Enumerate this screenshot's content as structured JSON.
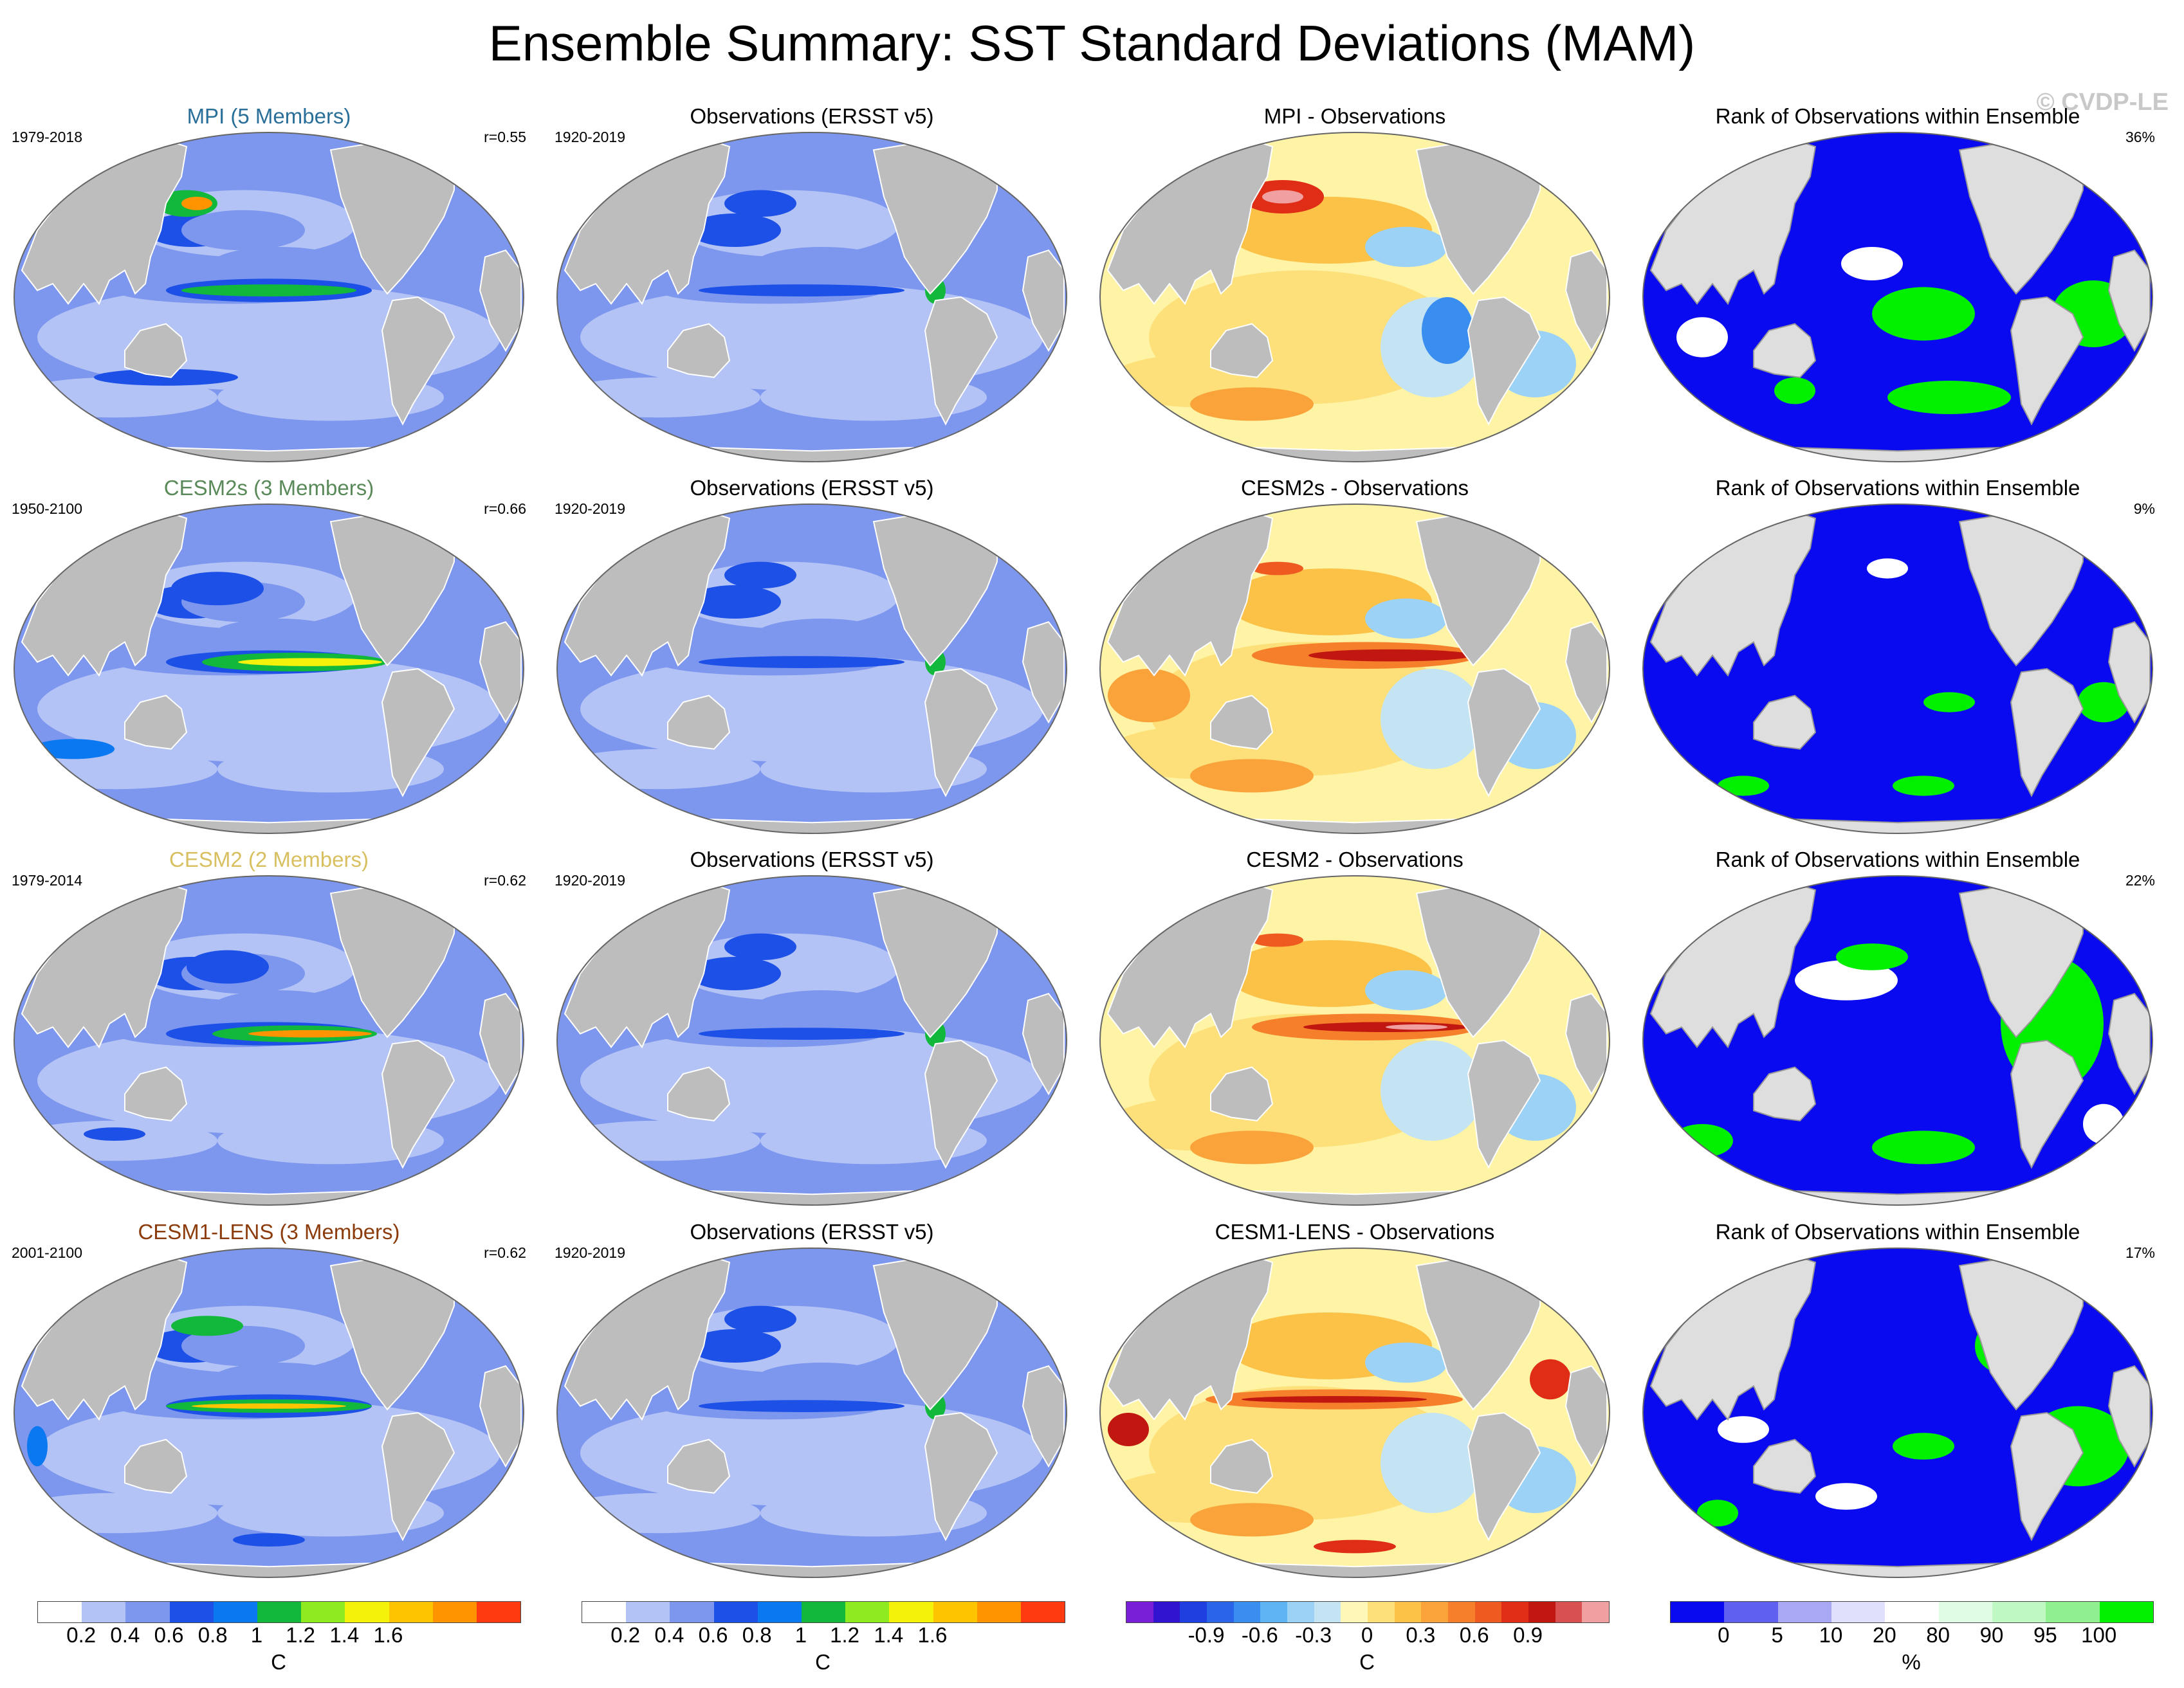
{
  "title": "Ensemble Summary: SST Standard Deviations (MAM)",
  "watermark": "© CVDP-LE",
  "colors": {
    "ocean_background": "#d0d8f8",
    "land": "#bdbdbd",
    "rank_land": "#dedede",
    "mpi": "#2a6f9a",
    "cesm2s": "#5a8a5a",
    "cesm2": "#d8c060",
    "cesm1_lens": "#8c3c0c"
  },
  "rows": [
    {
      "model": {
        "title": "MPI (5 Members)",
        "years": "1979-2018",
        "pattern_corr": "r=0.55",
        "title_color": "#2a6f9a"
      },
      "obs": {
        "title": "Observations (ERSST v5)",
        "years": "1920-2019"
      },
      "diff": {
        "title": "MPI - Observations"
      },
      "rank": {
        "title": "Rank of Observations within Ensemble",
        "percent": "36%"
      }
    },
    {
      "model": {
        "title": "CESM2s (3 Members)",
        "years": "1950-2100",
        "pattern_corr": "r=0.66",
        "title_color": "#5a8a5a"
      },
      "obs": {
        "title": "Observations (ERSST v5)",
        "years": "1920-2019"
      },
      "diff": {
        "title": "CESM2s - Observations"
      },
      "rank": {
        "title": "Rank of Observations within Ensemble",
        "percent": "9%"
      }
    },
    {
      "model": {
        "title": "CESM2 (2 Members)",
        "years": "1979-2014",
        "pattern_corr": "r=0.62",
        "title_color": "#d8c060"
      },
      "obs": {
        "title": "Observations (ERSST v5)",
        "years": "1920-2019"
      },
      "diff": {
        "title": "CESM2 - Observations"
      },
      "rank": {
        "title": "Rank of Observations within Ensemble",
        "percent": "22%"
      }
    },
    {
      "model": {
        "title": "CESM1-LENS (3 Members)",
        "years": "2001-2100",
        "pattern_corr": "r=0.62",
        "title_color": "#8c3c0c"
      },
      "obs": {
        "title": "Observations (ERSST v5)",
        "years": "1920-2019"
      },
      "diff": {
        "title": "CESM1-LENS - Observations"
      },
      "rank": {
        "title": "Rank of Observations within Ensemble",
        "percent": "17%"
      }
    }
  ],
  "chart_data": [
    {
      "type": "heatmap",
      "name": "sst_stddev_colorbar",
      "unit": "C",
      "levels": [
        0.2,
        0.4,
        0.6,
        0.8,
        1.0,
        1.2,
        1.4,
        1.6
      ],
      "tick_labels": [
        "0.2",
        "0.4",
        "0.6",
        "0.8",
        "1",
        "1.2",
        "1.4",
        "1.6"
      ],
      "colors": [
        "#ffffff",
        "#b4c3f5",
        "#7d96ee",
        "#1c50e6",
        "#0a78f0",
        "#12b83c",
        "#90ea20",
        "#f4f20a",
        "#ffc400",
        "#ff9400",
        "#ff3a10"
      ]
    },
    {
      "type": "heatmap",
      "name": "difference_colorbar",
      "unit": "C",
      "levels": [
        -0.9,
        -0.6,
        -0.3,
        0,
        0.3,
        0.6,
        0.9
      ],
      "tick_labels": [
        "-0.9",
        "-0.6",
        "-0.3",
        "0",
        "0.3",
        "0.6",
        "0.9"
      ],
      "colors": [
        "#7a1fd8",
        "#3014d0",
        "#1f3fe0",
        "#2a64e8",
        "#3a8ef0",
        "#5fb4f4",
        "#9cd2f6",
        "#c4e4f4",
        "#fff7b8",
        "#fde07a",
        "#fcc247",
        "#f9a33a",
        "#f57f2a",
        "#ee5a1f",
        "#e02d16",
        "#c01810",
        "#d85050",
        "#f0a0a0"
      ]
    },
    {
      "type": "heatmap",
      "name": "rank_colorbar",
      "unit": "%",
      "levels": [
        0,
        5,
        10,
        20,
        80,
        90,
        95,
        100
      ],
      "tick_labels": [
        "0",
        "5",
        "10",
        "20",
        "80",
        "90",
        "95",
        "100"
      ],
      "colors": [
        "#0a0af0",
        "#6060f0",
        "#a8a8f4",
        "#e0e0fc",
        "#ffffff",
        "#e0fce4",
        "#c0f8c4",
        "#90f090",
        "#00f000"
      ]
    }
  ]
}
